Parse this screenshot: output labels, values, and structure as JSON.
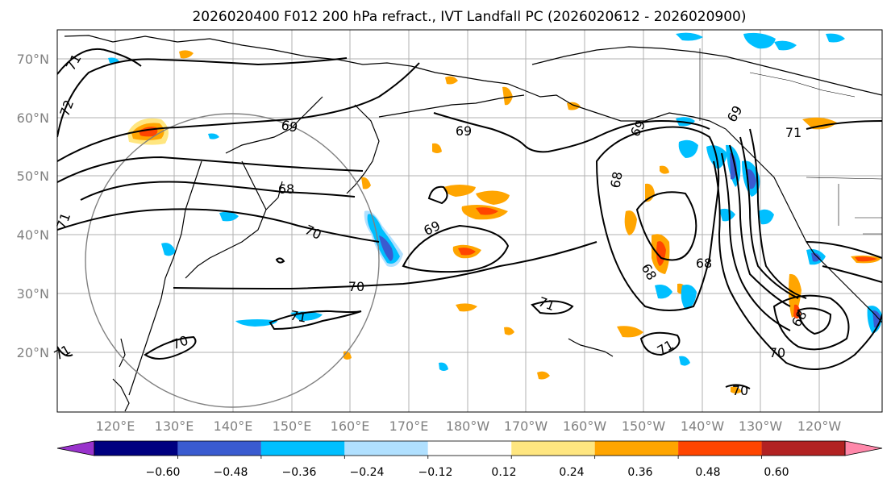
{
  "title": "2026020400 F012 200 hPa refract., IVT Landfall PC (2026020612 - 2026020900)",
  "lat_labels": [
    "70°N",
    "60°N",
    "50°N",
    "40°N",
    "30°N",
    "20°N"
  ],
  "lon_labels": [
    "120°E",
    "130°E",
    "140°E",
    "150°E",
    "160°E",
    "170°E",
    "180°W",
    "170°W",
    "160°W",
    "150°W",
    "140°W",
    "130°W",
    "120°W"
  ],
  "colorbar": {
    "colors": [
      "#9933cc",
      "#000080",
      "#3a5bd0",
      "#00bfff",
      "#b0e0ff",
      "#ffffff",
      "#ffe680",
      "#ffa500",
      "#ff4500",
      "#b22222",
      "#ff88aa"
    ],
    "tick_labels": [
      "−0.60",
      "−0.48",
      "−0.36",
      "−0.24",
      "−0.12",
      "0.12",
      "0.24",
      "0.36",
      "0.48",
      "0.60"
    ]
  },
  "contour_labels": [
    {
      "text": "72",
      "rot": -70
    },
    {
      "text": "71",
      "rot": -60
    },
    {
      "text": "69",
      "rot": 10
    },
    {
      "text": "68",
      "rot": 0
    },
    {
      "text": "71",
      "rot": -70
    },
    {
      "text": "70",
      "rot": 25
    },
    {
      "text": "69",
      "rot": -25
    },
    {
      "text": "70",
      "rot": 0
    },
    {
      "text": "71",
      "rot": 10
    },
    {
      "text": "70",
      "rot": -20
    },
    {
      "text": "71",
      "rot": -30
    },
    {
      "text": "69",
      "rot": 0
    },
    {
      "text": "71",
      "rot": 20
    },
    {
      "text": "68",
      "rot": -80
    },
    {
      "text": "69",
      "rot": -60
    },
    {
      "text": "68",
      "rot": 0
    },
    {
      "text": "68",
      "rot": 60
    },
    {
      "text": "71",
      "rot": -30
    },
    {
      "text": "69",
      "rot": -60
    },
    {
      "text": "71",
      "rot": 0
    },
    {
      "text": "70",
      "rot": 0
    },
    {
      "text": "70",
      "rot": 0
    },
    {
      "text": "68",
      "rot": -60
    }
  ]
}
